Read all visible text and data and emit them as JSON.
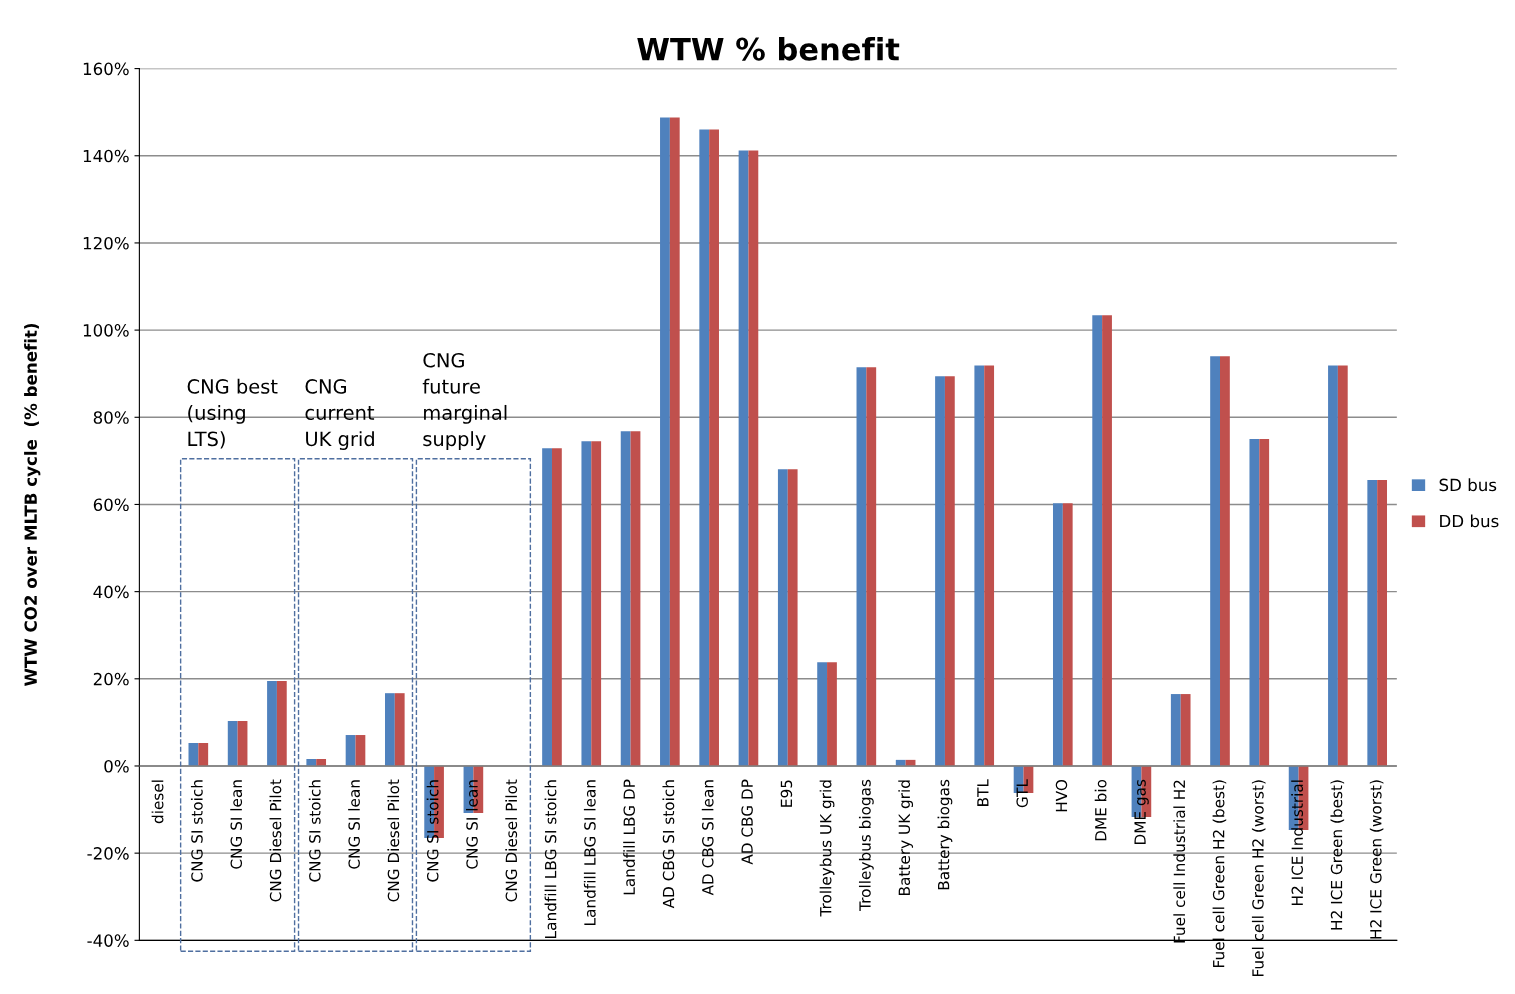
{
  "chart_data": {
    "type": "bar",
    "title": "WTW % benefit",
    "ylabel": "WTW CO2 over MLTB cycle  (% benefit)",
    "categories": [
      "diesel",
      "CNG SI stoich",
      "CNG SI lean",
      "CNG Diesel Pilot",
      "CNG SI stoich",
      "CNG SI lean",
      "CNG Diesel Pilot",
      "CNG SI stoich",
      "CNG SI lean",
      "CNG Diesel Pilot",
      "Landfill LBG SI stoich",
      "Landfill LBG SI lean",
      "Landfill LBG DP",
      "AD CBG SI stoich",
      "AD CBG SI lean",
      "AD CBG DP",
      "E95",
      "Trolleybus UK grid",
      "Trolleybus biogas",
      "Battery UK grid",
      "Battery biogas",
      "BTL",
      "GTL",
      "HVO",
      "DME bio",
      "DME gas",
      "Fuel cell Industrial H2",
      "Fuel cell Green H2 (best)",
      "Fuel cell Green H2 (worst)",
      "H2 ICE Industrial",
      "H2 ICE Green (best)",
      "H2 ICE Green (worst)"
    ],
    "series": [
      {
        "name": "SD bus",
        "color": "#4f81bd",
        "values": [
          0,
          5.3,
          10.3,
          19.5,
          1.6,
          7.1,
          16.7,
          -16.5,
          -10.8,
          0,
          72.9,
          74.5,
          76.8,
          148.8,
          146,
          141.2,
          68.1,
          23.8,
          91.5,
          1.4,
          89.4,
          91.9,
          -6.2,
          60.3,
          103.4,
          -11.7,
          16.5,
          94,
          75,
          -14.7,
          91.9,
          65.6
        ]
      },
      {
        "name": "DD bus",
        "color": "#c0504d",
        "values": [
          0,
          5.3,
          10.3,
          19.5,
          1.6,
          7.1,
          16.7,
          -16.5,
          -10.8,
          0,
          72.9,
          74.5,
          76.8,
          148.8,
          146,
          141.2,
          68.1,
          23.8,
          91.5,
          1.4,
          89.4,
          91.9,
          -6.2,
          60.3,
          103.4,
          -11.7,
          16.5,
          94,
          75,
          -14.7,
          91.9,
          65.6
        ]
      }
    ],
    "ylim": [
      -40,
      160
    ],
    "yticks": [
      {
        "value": -40,
        "label": "-40%"
      },
      {
        "value": -20,
        "label": "-20%"
      },
      {
        "value": 0,
        "label": "0%"
      },
      {
        "value": 20,
        "label": "20%"
      },
      {
        "value": 40,
        "label": "40%"
      },
      {
        "value": 60,
        "label": "60%"
      },
      {
        "value": 80,
        "label": "80%"
      },
      {
        "value": 100,
        "label": "100%"
      },
      {
        "value": 120,
        "label": "120%"
      },
      {
        "value": 140,
        "label": "140%"
      },
      {
        "value": 160,
        "label": "160%"
      }
    ],
    "grid": "y",
    "legend": "right",
    "annotations": [
      "CNG best\n(using\nLTS)",
      "CNG\ncurrent\nUK grid",
      "CNG\nfuture\nmarginal\nsupply"
    ]
  }
}
